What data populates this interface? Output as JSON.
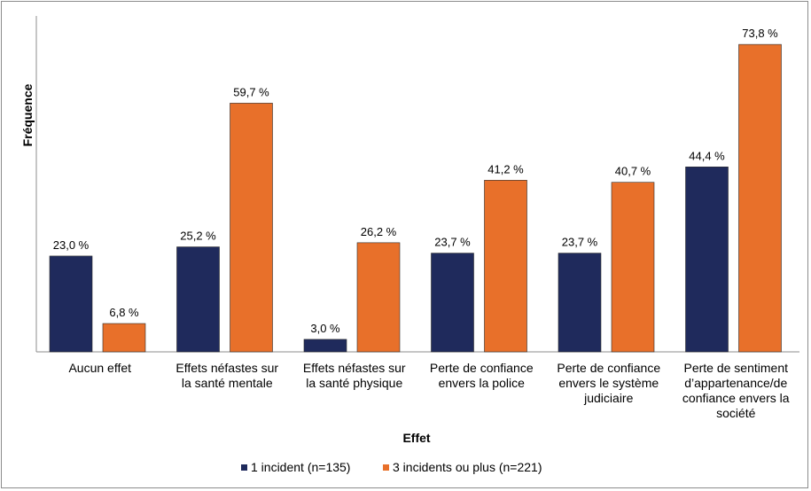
{
  "chart_data": {
    "type": "bar",
    "title": "",
    "xlabel": "Effet",
    "ylabel": "Fréquence",
    "ylim": [
      0,
      80
    ],
    "grid": false,
    "legend_position": "bottom",
    "categories": [
      [
        "Aucun effet"
      ],
      [
        "Effets néfastes sur",
        "la santé mentale"
      ],
      [
        "Effets néfastes sur",
        "la santé physique"
      ],
      [
        "Perte de confiance",
        "envers la police"
      ],
      [
        "Perte de confiance",
        "envers le système",
        "judiciaire"
      ],
      [
        "Perte de sentiment",
        "d’appartenance/de",
        "confiance envers la",
        "société"
      ]
    ],
    "series": [
      {
        "name": "1 incident (n=135)",
        "color": "#1f2a5c",
        "values": [
          23.0,
          25.2,
          3.0,
          23.7,
          23.7,
          44.4
        ],
        "labels": [
          "23,0 %",
          "25,2 %",
          "3,0 %",
          "23,7 %",
          "23,7 %",
          "44,4 %"
        ]
      },
      {
        "name": "3 incidents ou plus (n=221)",
        "color": "#e8702a",
        "values": [
          6.8,
          59.7,
          26.2,
          41.2,
          40.7,
          73.8
        ],
        "labels": [
          "6,8 %",
          "59,7 %",
          "26,2 %",
          "41,2 %",
          "40,7 %",
          "73,8 %"
        ]
      }
    ]
  }
}
